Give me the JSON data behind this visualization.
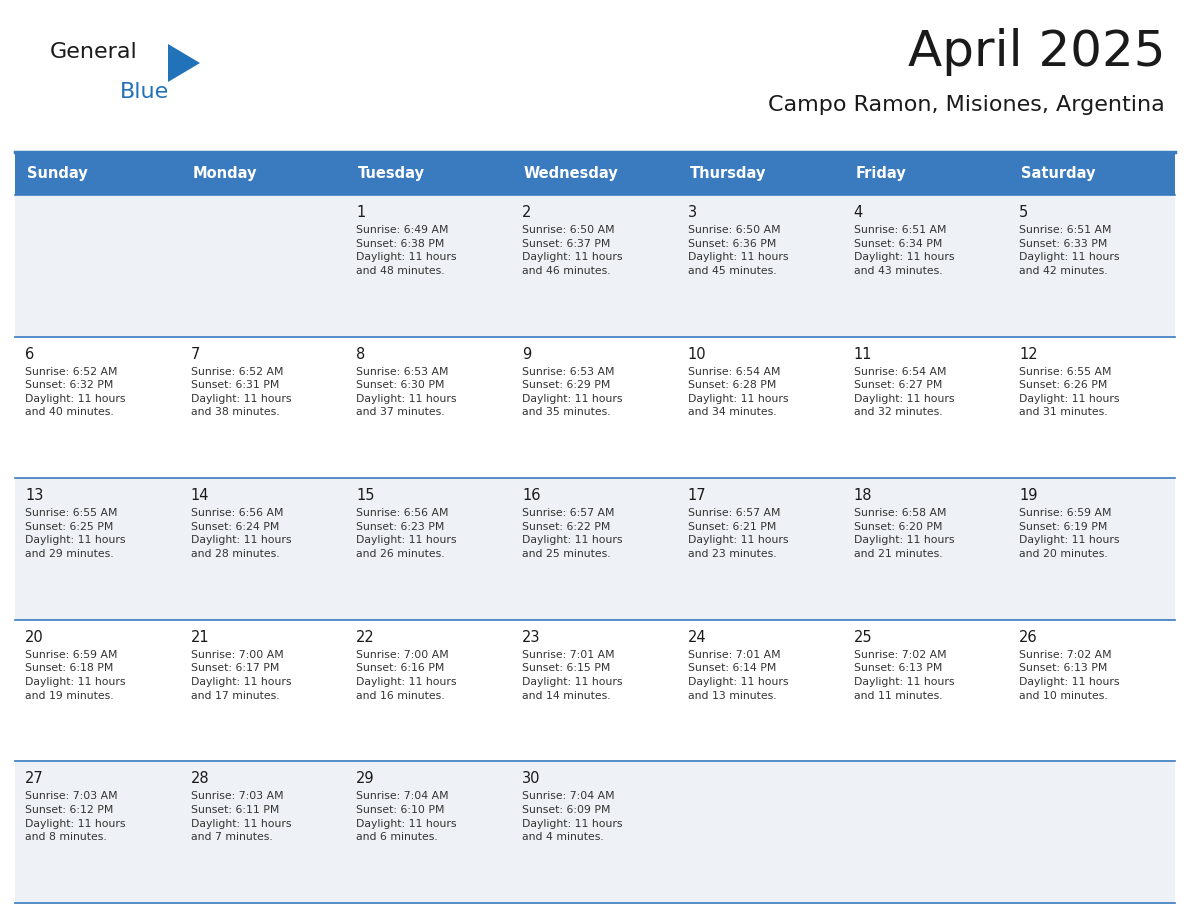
{
  "title": "April 2025",
  "subtitle": "Campo Ramon, Misiones, Argentina",
  "header_color": "#3a7abf",
  "header_text_color": "#ffffff",
  "cell_bg_even": "#eef2f7",
  "cell_bg_odd": "#ffffff",
  "border_color": "#3a7abf",
  "day_names": [
    "Sunday",
    "Monday",
    "Tuesday",
    "Wednesday",
    "Thursday",
    "Friday",
    "Saturday"
  ],
  "title_color": "#1a1a1a",
  "subtitle_color": "#1a1a1a",
  "cell_text_color": "#333333",
  "day_num_color": "#1a1a1a",
  "logo_general_color": "#1a1a1a",
  "logo_blue_color": "#2272b9",
  "logo_triangle_color": "#2272b9",
  "calendar": [
    [
      {
        "day": "",
        "text": ""
      },
      {
        "day": "",
        "text": ""
      },
      {
        "day": "1",
        "text": "Sunrise: 6:49 AM\nSunset: 6:38 PM\nDaylight: 11 hours\nand 48 minutes."
      },
      {
        "day": "2",
        "text": "Sunrise: 6:50 AM\nSunset: 6:37 PM\nDaylight: 11 hours\nand 46 minutes."
      },
      {
        "day": "3",
        "text": "Sunrise: 6:50 AM\nSunset: 6:36 PM\nDaylight: 11 hours\nand 45 minutes."
      },
      {
        "day": "4",
        "text": "Sunrise: 6:51 AM\nSunset: 6:34 PM\nDaylight: 11 hours\nand 43 minutes."
      },
      {
        "day": "5",
        "text": "Sunrise: 6:51 AM\nSunset: 6:33 PM\nDaylight: 11 hours\nand 42 minutes."
      }
    ],
    [
      {
        "day": "6",
        "text": "Sunrise: 6:52 AM\nSunset: 6:32 PM\nDaylight: 11 hours\nand 40 minutes."
      },
      {
        "day": "7",
        "text": "Sunrise: 6:52 AM\nSunset: 6:31 PM\nDaylight: 11 hours\nand 38 minutes."
      },
      {
        "day": "8",
        "text": "Sunrise: 6:53 AM\nSunset: 6:30 PM\nDaylight: 11 hours\nand 37 minutes."
      },
      {
        "day": "9",
        "text": "Sunrise: 6:53 AM\nSunset: 6:29 PM\nDaylight: 11 hours\nand 35 minutes."
      },
      {
        "day": "10",
        "text": "Sunrise: 6:54 AM\nSunset: 6:28 PM\nDaylight: 11 hours\nand 34 minutes."
      },
      {
        "day": "11",
        "text": "Sunrise: 6:54 AM\nSunset: 6:27 PM\nDaylight: 11 hours\nand 32 minutes."
      },
      {
        "day": "12",
        "text": "Sunrise: 6:55 AM\nSunset: 6:26 PM\nDaylight: 11 hours\nand 31 minutes."
      }
    ],
    [
      {
        "day": "13",
        "text": "Sunrise: 6:55 AM\nSunset: 6:25 PM\nDaylight: 11 hours\nand 29 minutes."
      },
      {
        "day": "14",
        "text": "Sunrise: 6:56 AM\nSunset: 6:24 PM\nDaylight: 11 hours\nand 28 minutes."
      },
      {
        "day": "15",
        "text": "Sunrise: 6:56 AM\nSunset: 6:23 PM\nDaylight: 11 hours\nand 26 minutes."
      },
      {
        "day": "16",
        "text": "Sunrise: 6:57 AM\nSunset: 6:22 PM\nDaylight: 11 hours\nand 25 minutes."
      },
      {
        "day": "17",
        "text": "Sunrise: 6:57 AM\nSunset: 6:21 PM\nDaylight: 11 hours\nand 23 minutes."
      },
      {
        "day": "18",
        "text": "Sunrise: 6:58 AM\nSunset: 6:20 PM\nDaylight: 11 hours\nand 21 minutes."
      },
      {
        "day": "19",
        "text": "Sunrise: 6:59 AM\nSunset: 6:19 PM\nDaylight: 11 hours\nand 20 minutes."
      }
    ],
    [
      {
        "day": "20",
        "text": "Sunrise: 6:59 AM\nSunset: 6:18 PM\nDaylight: 11 hours\nand 19 minutes."
      },
      {
        "day": "21",
        "text": "Sunrise: 7:00 AM\nSunset: 6:17 PM\nDaylight: 11 hours\nand 17 minutes."
      },
      {
        "day": "22",
        "text": "Sunrise: 7:00 AM\nSunset: 6:16 PM\nDaylight: 11 hours\nand 16 minutes."
      },
      {
        "day": "23",
        "text": "Sunrise: 7:01 AM\nSunset: 6:15 PM\nDaylight: 11 hours\nand 14 minutes."
      },
      {
        "day": "24",
        "text": "Sunrise: 7:01 AM\nSunset: 6:14 PM\nDaylight: 11 hours\nand 13 minutes."
      },
      {
        "day": "25",
        "text": "Sunrise: 7:02 AM\nSunset: 6:13 PM\nDaylight: 11 hours\nand 11 minutes."
      },
      {
        "day": "26",
        "text": "Sunrise: 7:02 AM\nSunset: 6:13 PM\nDaylight: 11 hours\nand 10 minutes."
      }
    ],
    [
      {
        "day": "27",
        "text": "Sunrise: 7:03 AM\nSunset: 6:12 PM\nDaylight: 11 hours\nand 8 minutes."
      },
      {
        "day": "28",
        "text": "Sunrise: 7:03 AM\nSunset: 6:11 PM\nDaylight: 11 hours\nand 7 minutes."
      },
      {
        "day": "29",
        "text": "Sunrise: 7:04 AM\nSunset: 6:10 PM\nDaylight: 11 hours\nand 6 minutes."
      },
      {
        "day": "30",
        "text": "Sunrise: 7:04 AM\nSunset: 6:09 PM\nDaylight: 11 hours\nand 4 minutes."
      },
      {
        "day": "",
        "text": ""
      },
      {
        "day": "",
        "text": ""
      },
      {
        "day": "",
        "text": ""
      }
    ]
  ],
  "n_rows": 5,
  "n_cols": 7
}
